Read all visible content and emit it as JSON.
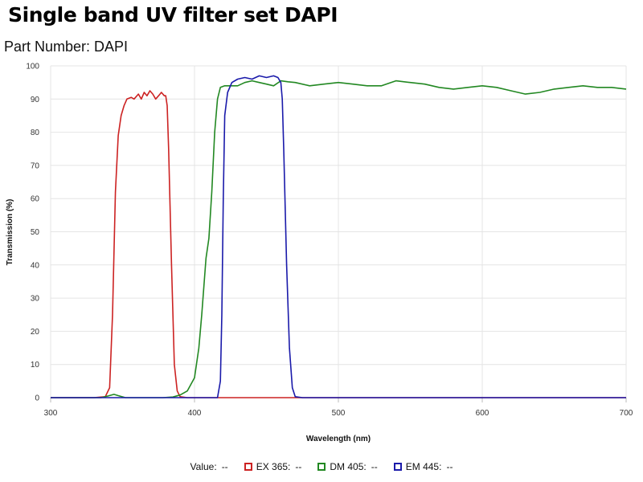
{
  "header": {
    "title": "Single band UV filter set DAPI",
    "subtitle": "Part Number: DAPI"
  },
  "legend": {
    "value_label": "Value:",
    "value_text": "--",
    "items": [
      {
        "label": "EX 365:",
        "value": "--",
        "color": "#cc2222"
      },
      {
        "label": "DM 405:",
        "value": "--",
        "color": "#228822"
      },
      {
        "label": "EM 445:",
        "value": "--",
        "color": "#1a1aaa"
      }
    ]
  },
  "chart_data": {
    "type": "line",
    "xlabel": "Wavelength (nm)",
    "ylabel": "Transmission (%)",
    "xlim": [
      300,
      700
    ],
    "ylim": [
      0,
      100
    ],
    "x_ticks": [
      300,
      400,
      500,
      600,
      700
    ],
    "y_ticks": [
      0,
      10,
      20,
      30,
      40,
      50,
      60,
      70,
      80,
      90,
      100
    ],
    "grid": true,
    "series": [
      {
        "name": "EX 365",
        "color": "#cc2222",
        "points": [
          [
            300,
            0
          ],
          [
            330,
            0
          ],
          [
            338,
            0.3
          ],
          [
            341,
            3
          ],
          [
            343,
            25
          ],
          [
            345,
            62
          ],
          [
            347,
            79
          ],
          [
            349,
            85
          ],
          [
            351,
            88
          ],
          [
            353,
            90
          ],
          [
            356,
            90.5
          ],
          [
            358,
            90
          ],
          [
            361,
            91.5
          ],
          [
            363,
            90
          ],
          [
            365,
            92
          ],
          [
            367,
            91
          ],
          [
            369,
            92.5
          ],
          [
            371,
            91.5
          ],
          [
            373,
            90
          ],
          [
            375,
            91
          ],
          [
            377,
            92
          ],
          [
            379,
            91
          ],
          [
            380,
            91
          ],
          [
            381,
            88
          ],
          [
            382,
            75
          ],
          [
            384,
            40
          ],
          [
            386,
            10
          ],
          [
            388,
            2
          ],
          [
            390,
            0.3
          ],
          [
            395,
            0
          ],
          [
            700,
            0
          ]
        ]
      },
      {
        "name": "DM 405",
        "color": "#228822",
        "points": [
          [
            300,
            0
          ],
          [
            335,
            0
          ],
          [
            340,
            0.5
          ],
          [
            344,
            1
          ],
          [
            347,
            0.6
          ],
          [
            352,
            0
          ],
          [
            378,
            0
          ],
          [
            385,
            0.2
          ],
          [
            390,
            0.8
          ],
          [
            395,
            2
          ],
          [
            400,
            6
          ],
          [
            403,
            15
          ],
          [
            405,
            25
          ],
          [
            408,
            42
          ],
          [
            410,
            48
          ],
          [
            412,
            62
          ],
          [
            414,
            80
          ],
          [
            416,
            90
          ],
          [
            418,
            93.5
          ],
          [
            421,
            94
          ],
          [
            425,
            94
          ],
          [
            430,
            94
          ],
          [
            435,
            95
          ],
          [
            440,
            95.5
          ],
          [
            445,
            95
          ],
          [
            450,
            94.5
          ],
          [
            455,
            94
          ],
          [
            460,
            95.5
          ],
          [
            465,
            95.2
          ],
          [
            470,
            95
          ],
          [
            480,
            94
          ],
          [
            490,
            94.5
          ],
          [
            500,
            95
          ],
          [
            510,
            94.5
          ],
          [
            520,
            94
          ],
          [
            530,
            94
          ],
          [
            540,
            95.5
          ],
          [
            550,
            95
          ],
          [
            560,
            94.5
          ],
          [
            570,
            93.5
          ],
          [
            580,
            93
          ],
          [
            590,
            93.5
          ],
          [
            600,
            94
          ],
          [
            610,
            93.5
          ],
          [
            620,
            92.5
          ],
          [
            630,
            91.5
          ],
          [
            640,
            92
          ],
          [
            650,
            93
          ],
          [
            660,
            93.5
          ],
          [
            670,
            94
          ],
          [
            680,
            93.5
          ],
          [
            690,
            93.5
          ],
          [
            700,
            93
          ]
        ]
      },
      {
        "name": "EM 445",
        "color": "#1a1aaa",
        "points": [
          [
            300,
            0
          ],
          [
            416,
            0
          ],
          [
            418,
            5
          ],
          [
            419,
            25
          ],
          [
            420,
            60
          ],
          [
            421,
            85
          ],
          [
            423,
            92
          ],
          [
            426,
            95
          ],
          [
            430,
            96
          ],
          [
            435,
            96.5
          ],
          [
            440,
            96
          ],
          [
            445,
            97
          ],
          [
            450,
            96.5
          ],
          [
            455,
            97
          ],
          [
            458,
            96.5
          ],
          [
            460,
            95
          ],
          [
            461,
            90
          ],
          [
            462,
            75
          ],
          [
            464,
            40
          ],
          [
            466,
            15
          ],
          [
            468,
            3
          ],
          [
            470,
            0.3
          ],
          [
            475,
            0
          ],
          [
            700,
            0
          ]
        ]
      }
    ]
  }
}
